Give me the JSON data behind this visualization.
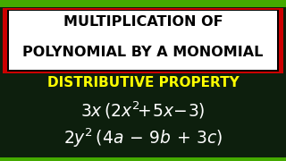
{
  "bg_color": "#0d1f0d",
  "green_stripe_color": "#44aa00",
  "title_box_bg": "#ffffff",
  "title_box_border_outer": "#cc0000",
  "title_box_border_inner": "#000000",
  "title_line1": "MULTIPLICATION OF",
  "title_line2": "POLYNOMIAL BY A MONOMIAL",
  "subtitle": "DISTRIBUTIVE PROPERTY",
  "subtitle_color": "#ffff00",
  "expr1": "$3x\\,(2x^2\\!+\\!5x\\!-\\!3)$",
  "expr2": "$2y^2\\,(4a\\,-\\,9b\\,+\\,3c)$",
  "title_fontsize": 11.5,
  "subtitle_fontsize": 11,
  "expr_fontsize": 13.5
}
